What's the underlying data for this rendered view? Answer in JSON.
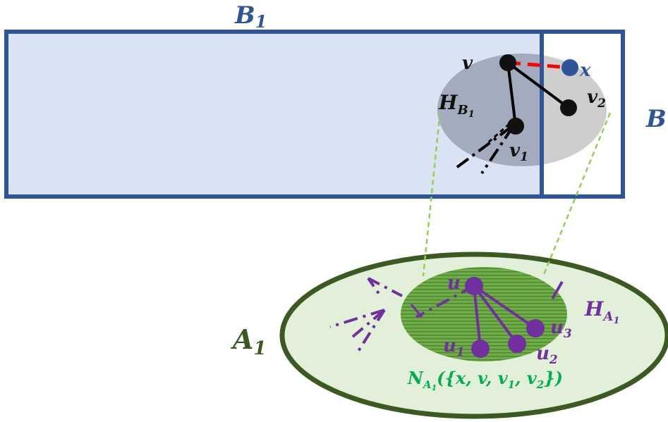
{
  "labels": {
    "B1_main": "B",
    "B1_sub": "1",
    "B_main": "B",
    "A1_main": "A",
    "A1_sub": "1",
    "HB1_main": "H",
    "HB1_sub": "B",
    "HB1_subsub": "1",
    "HA1_main": "H",
    "HA1_sub": "A",
    "HA1_subsub": "1",
    "NA1_main": "N",
    "NA1_sub": "A",
    "NA1_subsub": "1",
    "NA1_args": "({x, v, v",
    "NA1_args_sub1": "1",
    "NA1_args_mid": ", v",
    "NA1_args_sub2": "2",
    "NA1_args_end": "})"
  },
  "nodes": {
    "v": "v",
    "x": "x",
    "v1_main": "v",
    "v1_sub": "1",
    "v2_main": "v",
    "v2_sub": "2",
    "u": "u",
    "u1_main": "u",
    "u1_sub": "1",
    "u2_main": "u",
    "u2_sub": "2",
    "u3_main": "u",
    "u3_sub": "3"
  },
  "colors": {
    "B_stroke": "#2f5597",
    "B1_fill": "#dae3f3",
    "HB_fill": "#8c93a6",
    "A1_fill": "#e2f0d9",
    "A1_stroke": "#3b5a22",
    "HA_fill": "#70ad47",
    "green_label": "#00b050",
    "purple": "#7030a0",
    "red_edge": "#ff0000",
    "x_node": "#2f5597",
    "dashed_link": "#92d050"
  }
}
